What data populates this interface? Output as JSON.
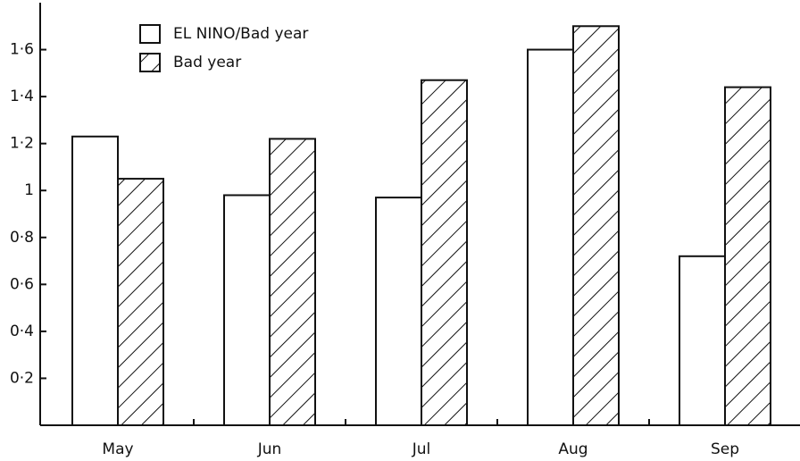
{
  "chart_data": {
    "type": "bar",
    "categories": [
      "May",
      "Jun",
      "Jul",
      "Aug",
      "Sep"
    ],
    "series": [
      {
        "name": "EL NINO/Bad year",
        "color": "#ffffff",
        "pattern": "none",
        "values": [
          1.23,
          0.98,
          0.97,
          1.6,
          0.72
        ]
      },
      {
        "name": "Bad year",
        "color": "#ffffff",
        "pattern": "hatch",
        "values": [
          1.05,
          1.22,
          1.47,
          1.7,
          1.44
        ]
      }
    ],
    "ylim": [
      0,
      1.8
    ],
    "yticks": [
      {
        "value": 0.2,
        "label": "0·2"
      },
      {
        "value": 0.4,
        "label": "0·4"
      },
      {
        "value": 0.6,
        "label": "0·6"
      },
      {
        "value": 0.8,
        "label": "0·8"
      },
      1,
      {
        "value": 1.2,
        "label": "1·2"
      },
      {
        "value": 1.4,
        "label": "1·4"
      },
      {
        "value": 1.6,
        "label": "1·6"
      }
    ],
    "grid": false
  }
}
